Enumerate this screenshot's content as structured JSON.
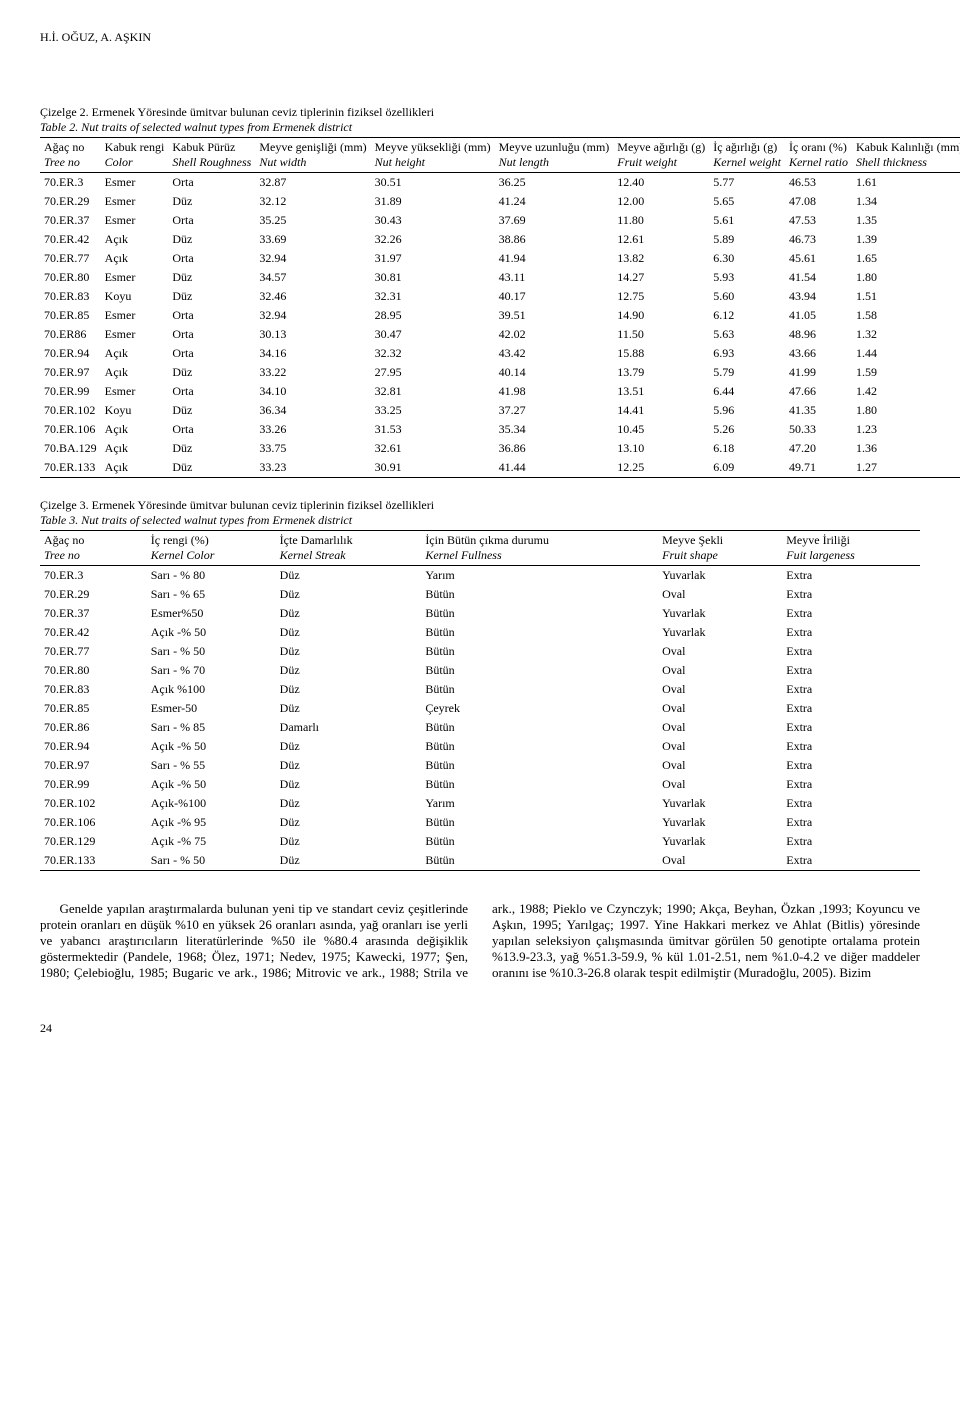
{
  "header": "H.İ. OĞUZ, A. AŞKIN",
  "page_number": "24",
  "table2": {
    "caption_tr": "Çizelge 2. Ermenek Yöresinde ümitvar bulunan ceviz tiplerinin fiziksel özellikleri",
    "caption_en": "Table 2. Nut traits of selected walnut types from Ermenek district",
    "columns": [
      {
        "tr": "Ağaç no",
        "en": "Tree no"
      },
      {
        "tr": "Kabuk rengi",
        "en": "Color",
        "it": ""
      },
      {
        "tr": "Kabuk Pürüz",
        "en": "Shell Roughness"
      },
      {
        "tr": "Meyve genişliği (mm)",
        "en": "Nut width"
      },
      {
        "tr": "Meyve yüksekliği (mm)",
        "en": "Nut height"
      },
      {
        "tr": "Meyve uzunluğu (mm)",
        "en": "Nut length"
      },
      {
        "tr": "Meyve ağırlığı (g)",
        "en": "Fruit weight"
      },
      {
        "tr": "İç ağırlığı (g)",
        "en": "Kernel weight"
      },
      {
        "tr": "İç oranı (%)",
        "en": "Kernel ratio"
      },
      {
        "tr": "Kabuk Kalınlığı (mm)/",
        "en": "Shell thickness"
      }
    ],
    "rows": [
      [
        "70.ER.3",
        "Esmer",
        "Orta",
        "32.87",
        "30.51",
        "36.25",
        "12.40",
        "5.77",
        "46.53",
        "1.61"
      ],
      [
        "70.ER.29",
        "Esmer",
        "Düz",
        "32.12",
        "31.89",
        "41.24",
        "12.00",
        "5.65",
        "47.08",
        "1.34"
      ],
      [
        "70.ER.37",
        "Esmer",
        "Orta",
        "35.25",
        "30.43",
        "37.69",
        "11.80",
        "5.61",
        "47.53",
        "1.35"
      ],
      [
        "70.ER.42",
        "Açık",
        "Düz",
        "33.69",
        "32.26",
        "38.86",
        "12.61",
        "5.89",
        "46.73",
        "1.39"
      ],
      [
        "70.ER.77",
        "Açık",
        "Orta",
        "32.94",
        "31.97",
        "41.94",
        "13.82",
        "6.30",
        "45.61",
        "1.65"
      ],
      [
        "70.ER.80",
        "Esmer",
        "Düz",
        "34.57",
        "30.81",
        "43.11",
        "14.27",
        "5.93",
        "41.54",
        "1.80"
      ],
      [
        "70.ER.83",
        "Koyu",
        "Düz",
        "32.46",
        "32.31",
        "40.17",
        "12.75",
        "5.60",
        "43.94",
        "1.51"
      ],
      [
        "70.ER.85",
        "Esmer",
        "Orta",
        "32.94",
        "28.95",
        "39.51",
        "14.90",
        "6.12",
        "41.05",
        "1.58"
      ],
      [
        "70.ER86",
        "Esmer",
        "Orta",
        "30.13",
        "30.47",
        "42.02",
        "11.50",
        "5.63",
        "48.96",
        "1.32"
      ],
      [
        "70.ER.94",
        "Açık",
        "Orta",
        "34.16",
        "32.32",
        "43.42",
        "15.88",
        "6.93",
        "43.66",
        "1.44"
      ],
      [
        "70.ER.97",
        "Açık",
        "Düz",
        "33.22",
        "27.95",
        "40.14",
        "13.79",
        "5.79",
        "41.99",
        "1.59"
      ],
      [
        "70.ER.99",
        "Esmer",
        "Orta",
        "34.10",
        "32.81",
        "41.98",
        "13.51",
        "6.44",
        "47.66",
        "1.42"
      ],
      [
        "70.ER.102",
        "Koyu",
        "Düz",
        "36.34",
        "33.25",
        "37.27",
        "14.41",
        "5.96",
        "41.35",
        "1.80"
      ],
      [
        "70.ER.106",
        "Açık",
        "Orta",
        "33.26",
        "31.53",
        "35.34",
        "10.45",
        "5.26",
        "50.33",
        "1.23"
      ],
      [
        "70.BA.129",
        "Açık",
        "Düz",
        "33.75",
        "32.61",
        "36.86",
        "13.10",
        "6.18",
        "47.20",
        "1.36"
      ],
      [
        "70.ER.133",
        "Açık",
        "Düz",
        "33.23",
        "30.91",
        "41.44",
        "12.25",
        "6.09",
        "49.71",
        "1.27"
      ]
    ]
  },
  "table3": {
    "caption_tr": "Çizelge 3. Ermenek Yöresinde ümitvar bulunan ceviz tiplerinin fiziksel özellikleri",
    "caption_en": "Table 3. Nut traits of selected walnut types from Ermenek district",
    "columns": [
      {
        "tr": "Ağaç no",
        "en": "Tree no"
      },
      {
        "tr": "İç rengi (%)",
        "en": "Kernel Color"
      },
      {
        "tr": "İçte Damarlılık",
        "en": "Kernel Streak"
      },
      {
        "tr": "İçin Bütün çıkma durumu",
        "en": "Kernel Fullness"
      },
      {
        "tr": "Meyve Şekli",
        "en": "Fruit shape"
      },
      {
        "tr": "Meyve İriliği",
        "en": "Fuit largeness"
      }
    ],
    "rows": [
      [
        "70.ER.3",
        "Sarı - % 80",
        "Düz",
        "Yarım",
        "Yuvarlak",
        "Extra"
      ],
      [
        "70.ER.29",
        "Sarı - % 65",
        "Düz",
        "Bütün",
        "Oval",
        "Extra"
      ],
      [
        "70.ER.37",
        "Esmer%50",
        "Düz",
        "Bütün",
        "Yuvarlak",
        "Extra"
      ],
      [
        "70.ER.42",
        "Açık -% 50",
        "Düz",
        "Bütün",
        "Yuvarlak",
        "Extra"
      ],
      [
        "70.ER.77",
        "Sarı - % 50",
        "Düz",
        "Bütün",
        "Oval",
        "Extra"
      ],
      [
        "70.ER.80",
        "Sarı - % 70",
        "Düz",
        "Bütün",
        "Oval",
        "Extra"
      ],
      [
        "70.ER.83",
        "Açık %100",
        "Düz",
        "Bütün",
        "Oval",
        "Extra"
      ],
      [
        "70.ER.85",
        "Esmer-50",
        "Düz",
        "Çeyrek",
        "Oval",
        "Extra"
      ],
      [
        "70.ER.86",
        "Sarı - % 85",
        "Damarlı",
        "Bütün",
        "Oval",
        "Extra"
      ],
      [
        "70.ER.94",
        "Açık -% 50",
        "Düz",
        "Bütün",
        "Oval",
        "Extra"
      ],
      [
        "70.ER.97",
        "Sarı - % 55",
        "Düz",
        "Bütün",
        "Oval",
        "Extra"
      ],
      [
        "70.ER.99",
        "Açık -% 50",
        "Düz",
        "Bütün",
        "Oval",
        "Extra"
      ],
      [
        "70.ER.102",
        "Açık-%100",
        "Düz",
        "Yarım",
        "Yuvarlak",
        "Extra"
      ],
      [
        "70.ER.106",
        "Açık -% 95",
        "Düz",
        "Bütün",
        "Yuvarlak",
        "Extra"
      ],
      [
        "70.ER.129",
        "Açık -% 75",
        "Düz",
        "Bütün",
        "Yuvarlak",
        "Extra"
      ],
      [
        "70.ER.133",
        "Sarı - % 50",
        "Düz",
        "Bütün",
        "Oval",
        "Extra"
      ]
    ]
  },
  "body": {
    "para1": "Genelde yapılan araştırmalarda bulunan yeni tip ve standart ceviz çeşitlerinde protein oranları en düşük %10 en yüksek 26 oranları asında, yağ oranları ise yerli ve yabancı araştırıcıların literatürlerinde %50 ile %80.4 arasında değişiklik göstermektedir (Pandele, 1968; Ölez, 1971; Nedev, 1975; Kawecki, 1977; Şen, 1980; Çelebioğlu, 1985; Bugaric ve ark., 1986; Mitrovic ve ark., 1988; Strila ve ark., 1988; Pieklo ve Czynczyk; 1990; Akça, Beyhan, Özkan ,1993; Koyuncu ve Aşkın, 1995; Yarılgaç; 1997. Yine Hakkari merkez ve Ahlat (Bitlis) yöresinde yapılan seleksiyon çalışmasında ümitvar görülen 50 genotipte ortalama protein %13.9-23.3, yağ %51.3-59.9, % kül 1.01-2.51, nem %1.0-4.2 ve diğer maddeler oranını ise %10.3-26.8 olarak tespit edilmiştir (Muradoğlu, 2005). Bizim"
  }
}
